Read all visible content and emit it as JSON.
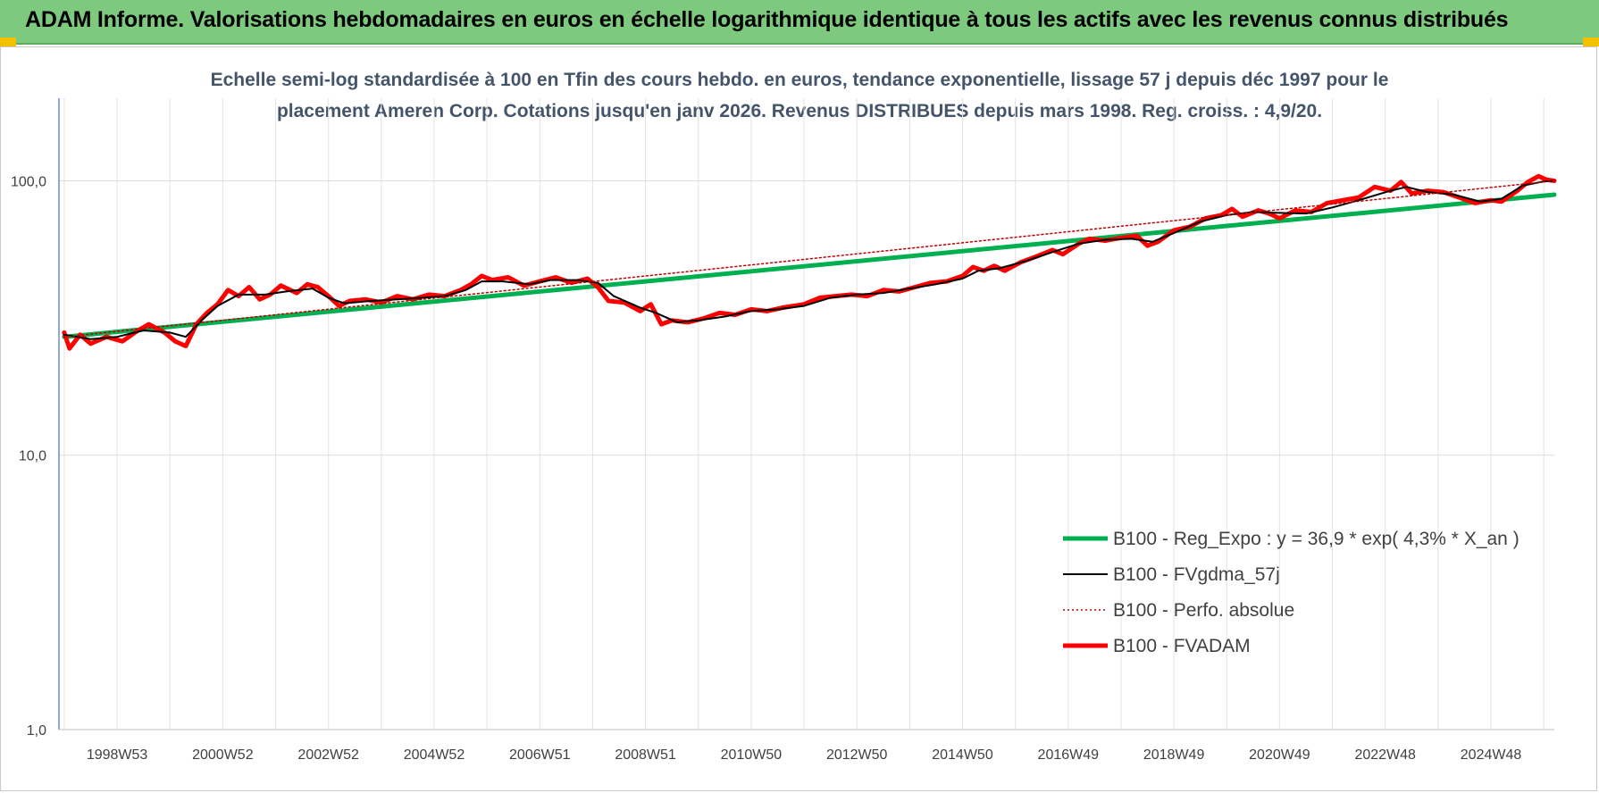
{
  "header": {
    "title": "ADAM Informe. Valorisations hebdomadaires en euros en échelle logarithmique identique à tous les actifs avec les revenus connus distribués"
  },
  "chart_data": {
    "type": "line",
    "subtitle_line1": "Echelle semi-log standardisée à 100 en Tfin des cours hebdo. en euros, tendance exponentielle, lissage 57 j depuis déc 1997 pour le",
    "subtitle_line2": "placement Ameren Corp. Cotations jusqu'en janv 2026.  Revenus DISTRIBUES depuis mars 1998. Reg. croiss. : 4,9/20.",
    "y_scale": "log",
    "ylim": [
      1,
      200
    ],
    "y_ticks": [
      "1,0",
      "10,0",
      "100,0"
    ],
    "xlim": [
      1997.9,
      2026.2
    ],
    "x_ticks": [
      {
        "label": "1998W53",
        "x": 1999.0
      },
      {
        "label": "2000W52",
        "x": 2001.0
      },
      {
        "label": "2002W52",
        "x": 2003.0
      },
      {
        "label": "2004W52",
        "x": 2005.0
      },
      {
        "label": "2006W51",
        "x": 2007.0
      },
      {
        "label": "2008W51",
        "x": 2009.0
      },
      {
        "label": "2010W50",
        "x": 2011.0
      },
      {
        "label": "2012W50",
        "x": 2013.0
      },
      {
        "label": "2014W50",
        "x": 2015.0
      },
      {
        "label": "2016W49",
        "x": 2017.0
      },
      {
        "label": "2018W49",
        "x": 2019.0
      },
      {
        "label": "2020W49",
        "x": 2021.0
      },
      {
        "label": "2022W48",
        "x": 2023.0
      },
      {
        "label": "2024W48",
        "x": 2025.0
      }
    ],
    "grid": true,
    "legend_position": "bottom-right",
    "series": [
      {
        "name": "B100 - Reg_Expo : y = 36,9 * exp( 4,3% *  X_an )",
        "color": "#00b050",
        "style": "solid-thick",
        "points": [
          [
            1998.0,
            27.0
          ],
          [
            2026.2,
            89.0
          ]
        ]
      },
      {
        "name": "B100 - FVgdma_57j",
        "color": "#000000",
        "style": "solid-thin",
        "points": [
          [
            1998.0,
            27.5
          ],
          [
            1998.5,
            26.5
          ],
          [
            1999.0,
            27.0
          ],
          [
            1999.5,
            28.5
          ],
          [
            2000.0,
            28.0
          ],
          [
            2000.3,
            27.0
          ],
          [
            2000.6,
            31.0
          ],
          [
            2000.9,
            35.0
          ],
          [
            2001.3,
            38.5
          ],
          [
            2001.8,
            38.5
          ],
          [
            2002.2,
            39.5
          ],
          [
            2002.7,
            40.5
          ],
          [
            2003.0,
            37.5
          ],
          [
            2003.3,
            35.8
          ],
          [
            2003.8,
            36.5
          ],
          [
            2004.3,
            37.0
          ],
          [
            2004.8,
            37.5
          ],
          [
            2005.2,
            38.0
          ],
          [
            2005.6,
            40.0
          ],
          [
            2005.9,
            43.0
          ],
          [
            2006.3,
            43.0
          ],
          [
            2006.8,
            42.0
          ],
          [
            2007.2,
            43.5
          ],
          [
            2007.7,
            43.5
          ],
          [
            2008.1,
            42.5
          ],
          [
            2008.4,
            38.0
          ],
          [
            2008.9,
            34.5
          ],
          [
            2009.2,
            33.0
          ],
          [
            2009.6,
            30.5
          ],
          [
            2010.0,
            31.0
          ],
          [
            2010.5,
            32.0
          ],
          [
            2011.0,
            33.5
          ],
          [
            2011.5,
            34.0
          ],
          [
            2012.0,
            35.0
          ],
          [
            2012.5,
            37.5
          ],
          [
            2013.0,
            38.5
          ],
          [
            2013.5,
            39.0
          ],
          [
            2014.0,
            40.5
          ],
          [
            2014.5,
            42.0
          ],
          [
            2015.0,
            44.0
          ],
          [
            2015.3,
            47.0
          ],
          [
            2015.7,
            48.0
          ],
          [
            2016.2,
            51.0
          ],
          [
            2016.7,
            55.0
          ],
          [
            2017.2,
            59.0
          ],
          [
            2017.7,
            61.0
          ],
          [
            2018.2,
            61.5
          ],
          [
            2018.6,
            60.0
          ],
          [
            2019.0,
            64.5
          ],
          [
            2019.5,
            71.0
          ],
          [
            2020.0,
            75.0
          ],
          [
            2020.5,
            77.0
          ],
          [
            2020.9,
            76.5
          ],
          [
            2021.5,
            76.0
          ],
          [
            2022.0,
            80.0
          ],
          [
            2022.5,
            85.0
          ],
          [
            2023.1,
            92.0
          ],
          [
            2023.4,
            95.0
          ],
          [
            2023.8,
            91.0
          ],
          [
            2024.3,
            89.0
          ],
          [
            2024.8,
            84.0
          ],
          [
            2025.2,
            86.0
          ],
          [
            2025.6,
            96.0
          ],
          [
            2026.0,
            99.5
          ],
          [
            2026.2,
            100.0
          ]
        ]
      },
      {
        "name": "B100 - Perfo. absolue",
        "color": "#c00000",
        "style": "dotted",
        "points": [
          [
            1998.0,
            27.0
          ],
          [
            2026.2,
            100.0
          ]
        ]
      },
      {
        "name": "B100 - FVADAM",
        "color": "#ff0000",
        "style": "solid-thick",
        "points": [
          [
            1998.0,
            28.0
          ],
          [
            1998.1,
            24.5
          ],
          [
            1998.3,
            27.5
          ],
          [
            1998.5,
            25.5
          ],
          [
            1998.8,
            27.0
          ],
          [
            1999.1,
            26.0
          ],
          [
            1999.4,
            28.5
          ],
          [
            1999.6,
            30.0
          ],
          [
            1999.9,
            28.0
          ],
          [
            2000.1,
            26.0
          ],
          [
            2000.3,
            25.0
          ],
          [
            2000.5,
            30.0
          ],
          [
            2000.7,
            33.0
          ],
          [
            2000.9,
            35.5
          ],
          [
            2001.1,
            40.0
          ],
          [
            2001.3,
            38.0
          ],
          [
            2001.5,
            41.0
          ],
          [
            2001.7,
            37.0
          ],
          [
            2001.9,
            38.5
          ],
          [
            2002.1,
            41.5
          ],
          [
            2002.4,
            39.0
          ],
          [
            2002.6,
            42.0
          ],
          [
            2002.8,
            41.0
          ],
          [
            2003.0,
            38.0
          ],
          [
            2003.2,
            35.0
          ],
          [
            2003.4,
            36.5
          ],
          [
            2003.7,
            37.0
          ],
          [
            2004.0,
            36.0
          ],
          [
            2004.3,
            38.0
          ],
          [
            2004.6,
            37.0
          ],
          [
            2004.9,
            38.5
          ],
          [
            2005.2,
            38.0
          ],
          [
            2005.5,
            40.0
          ],
          [
            2005.7,
            42.0
          ],
          [
            2005.9,
            45.0
          ],
          [
            2006.1,
            43.5
          ],
          [
            2006.4,
            44.5
          ],
          [
            2006.7,
            41.5
          ],
          [
            2007.0,
            43.0
          ],
          [
            2007.3,
            44.5
          ],
          [
            2007.6,
            42.5
          ],
          [
            2007.9,
            44.0
          ],
          [
            2008.1,
            41.0
          ],
          [
            2008.3,
            36.5
          ],
          [
            2008.6,
            36.0
          ],
          [
            2008.9,
            33.5
          ],
          [
            2009.1,
            35.5
          ],
          [
            2009.3,
            30.0
          ],
          [
            2009.5,
            31.0
          ],
          [
            2009.8,
            30.5
          ],
          [
            2010.1,
            31.5
          ],
          [
            2010.4,
            33.0
          ],
          [
            2010.7,
            32.5
          ],
          [
            2011.0,
            34.0
          ],
          [
            2011.3,
            33.5
          ],
          [
            2011.6,
            34.5
          ],
          [
            2012.0,
            35.5
          ],
          [
            2012.3,
            37.5
          ],
          [
            2012.6,
            38.0
          ],
          [
            2012.9,
            38.5
          ],
          [
            2013.2,
            38.0
          ],
          [
            2013.5,
            40.0
          ],
          [
            2013.8,
            39.5
          ],
          [
            2014.1,
            41.0
          ],
          [
            2014.4,
            42.5
          ],
          [
            2014.7,
            43.0
          ],
          [
            2015.0,
            45.0
          ],
          [
            2015.2,
            48.5
          ],
          [
            2015.4,
            47.0
          ],
          [
            2015.6,
            49.0
          ],
          [
            2015.8,
            47.0
          ],
          [
            2016.1,
            50.5
          ],
          [
            2016.4,
            53.0
          ],
          [
            2016.7,
            56.0
          ],
          [
            2016.9,
            54.0
          ],
          [
            2017.2,
            59.0
          ],
          [
            2017.4,
            61.5
          ],
          [
            2017.7,
            60.5
          ],
          [
            2018.0,
            62.0
          ],
          [
            2018.3,
            63.0
          ],
          [
            2018.5,
            58.0
          ],
          [
            2018.7,
            60.0
          ],
          [
            2019.0,
            66.0
          ],
          [
            2019.3,
            68.0
          ],
          [
            2019.6,
            73.0
          ],
          [
            2019.9,
            75.0
          ],
          [
            2020.1,
            79.0
          ],
          [
            2020.3,
            74.0
          ],
          [
            2020.6,
            78.0
          ],
          [
            2020.8,
            76.0
          ],
          [
            2021.0,
            73.0
          ],
          [
            2021.3,
            78.0
          ],
          [
            2021.6,
            77.0
          ],
          [
            2021.9,
            83.0
          ],
          [
            2022.2,
            85.0
          ],
          [
            2022.5,
            87.0
          ],
          [
            2022.8,
            95.0
          ],
          [
            2023.1,
            92.0
          ],
          [
            2023.3,
            99.0
          ],
          [
            2023.5,
            90.0
          ],
          [
            2023.8,
            92.0
          ],
          [
            2024.1,
            91.0
          ],
          [
            2024.4,
            87.0
          ],
          [
            2024.7,
            83.0
          ],
          [
            2025.0,
            85.0
          ],
          [
            2025.2,
            84.0
          ],
          [
            2025.5,
            92.0
          ],
          [
            2025.7,
            99.0
          ],
          [
            2025.9,
            104.0
          ],
          [
            2026.05,
            101.0
          ],
          [
            2026.2,
            100.0
          ]
        ]
      }
    ]
  }
}
